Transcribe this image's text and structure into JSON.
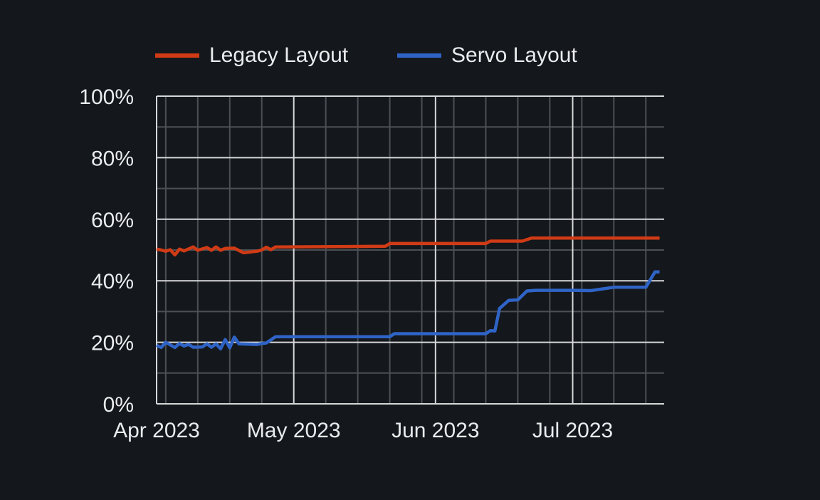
{
  "colors": {
    "background": "#14171b",
    "text": "#e9ebed",
    "grid_major": "#d6d7d9",
    "grid_minor": "#4c5055",
    "legacy_red": "#d03b16",
    "servo_blue": "#2f64c7"
  },
  "chart": {
    "legend": [
      {
        "label": "Legacy Layout",
        "color": "#d03b16"
      },
      {
        "label": "Servo Layout",
        "color": "#2f64c7"
      }
    ]
  },
  "chart_data": {
    "type": "line",
    "title": "",
    "xlabel": "",
    "ylabel": "",
    "x_axis": {
      "unit": "days since Apr 1 2023",
      "xlim": [
        0,
        111
      ],
      "major_ticks": [
        {
          "day": 0,
          "label": "Apr 2023"
        },
        {
          "day": 30,
          "label": "May 2023"
        },
        {
          "day": 61,
          "label": "Jun 2023"
        },
        {
          "day": 91,
          "label": "Jul 2023"
        }
      ],
      "minor_tick_start_day": 2,
      "minor_tick_interval_days": 7
    },
    "y_axis": {
      "ylim": [
        0,
        100
      ],
      "major_tick_step": 20,
      "minor_tick_step": 10,
      "tick_suffix": "%",
      "major_tick_labels": [
        "0%",
        "20%",
        "40%",
        "60%",
        "80%",
        "100%"
      ]
    },
    "grid": {
      "on": true,
      "major_color": "#d6d7d9",
      "minor_color": "#4c5055"
    },
    "legend_position": "top",
    "series": [
      {
        "name": "Legacy Layout",
        "color": "#d03b16",
        "points": [
          [
            0,
            50.3
          ],
          [
            1,
            50.0
          ],
          [
            2,
            49.6
          ],
          [
            3,
            50.1
          ],
          [
            4,
            48.4
          ],
          [
            5,
            50.3
          ],
          [
            6,
            49.7
          ],
          [
            8,
            51.0
          ],
          [
            9,
            49.9
          ],
          [
            11,
            50.8
          ],
          [
            12,
            49.9
          ],
          [
            13,
            51.0
          ],
          [
            14,
            49.9
          ],
          [
            15,
            50.5
          ],
          [
            17,
            50.6
          ],
          [
            19,
            49.1
          ],
          [
            22,
            49.6
          ],
          [
            23,
            50.0
          ],
          [
            24,
            50.9
          ],
          [
            25,
            50.1
          ],
          [
            26,
            51.0
          ],
          [
            50,
            51.2
          ],
          [
            51,
            52.1
          ],
          [
            72,
            52.1
          ],
          [
            73,
            52.9
          ],
          [
            80,
            52.9
          ],
          [
            82,
            53.9
          ],
          [
            110,
            53.9
          ]
        ]
      },
      {
        "name": "Servo Layout",
        "color": "#2f64c7",
        "points": [
          [
            0,
            19.0
          ],
          [
            1,
            18.3
          ],
          [
            2,
            20.0
          ],
          [
            4,
            18.3
          ],
          [
            5,
            19.6
          ],
          [
            6,
            18.8
          ],
          [
            7,
            19.3
          ],
          [
            8,
            18.4
          ],
          [
            10,
            18.5
          ],
          [
            11,
            19.5
          ],
          [
            12,
            18.4
          ],
          [
            13,
            19.5
          ],
          [
            14,
            17.9
          ],
          [
            15,
            20.9
          ],
          [
            16,
            18.2
          ],
          [
            17,
            21.7
          ],
          [
            18,
            19.5
          ],
          [
            22,
            19.3
          ],
          [
            23,
            19.6
          ],
          [
            24,
            19.8
          ],
          [
            26,
            21.8
          ],
          [
            51,
            21.8
          ],
          [
            52,
            22.8
          ],
          [
            72,
            22.8
          ],
          [
            73,
            23.8
          ],
          [
            74,
            23.7
          ],
          [
            75,
            31.0
          ],
          [
            77,
            33.6
          ],
          [
            79,
            33.8
          ],
          [
            81,
            36.7
          ],
          [
            83,
            36.9
          ],
          [
            91,
            36.9
          ],
          [
            95,
            36.8
          ],
          [
            100,
            37.9
          ],
          [
            107,
            37.9
          ],
          [
            109,
            42.9
          ],
          [
            110,
            42.9
          ]
        ]
      }
    ]
  }
}
